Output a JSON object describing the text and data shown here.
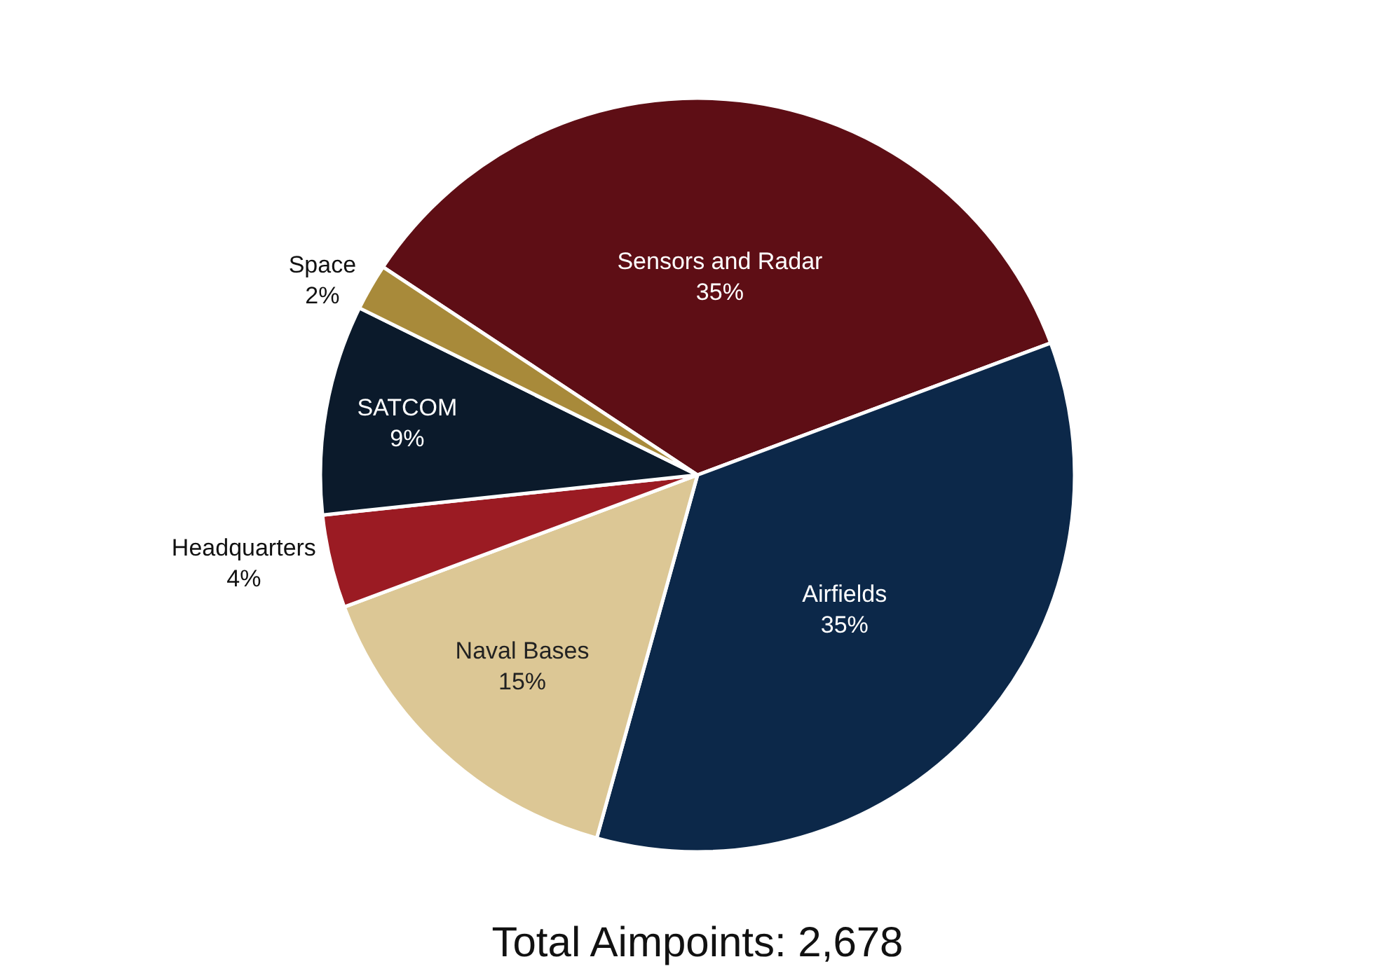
{
  "chart_data": {
    "type": "pie",
    "title": "Total Aimpoints: 2,678",
    "categories": [
      "Sensors and Radar",
      "Airfields",
      "Naval Bases",
      "Headquarters",
      "SATCOM",
      "Space"
    ],
    "values": [
      35,
      35,
      15,
      4,
      9,
      2
    ],
    "value_labels": [
      "35%",
      "35%",
      "15%",
      "4%",
      "9%",
      "2%"
    ],
    "colors": [
      "#5e0e15",
      "#0c2849",
      "#dcc795",
      "#9b1b23",
      "#0b1a2b",
      "#a88a3a"
    ],
    "legend": false
  }
}
